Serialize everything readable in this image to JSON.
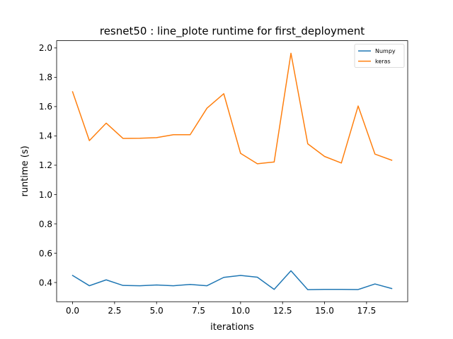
{
  "chart_data": {
    "type": "line",
    "title": "resnet50 : line_plote runtime  for first_deployment",
    "xlabel": "iterations",
    "ylabel": "runtime (s)",
    "xlim": [
      -0.95,
      19.95
    ],
    "ylim": [
      0.269,
      2.0495
    ],
    "x_ticks": [
      0.0,
      2.5,
      5.0,
      7.5,
      10.0,
      12.5,
      15.0,
      17.5
    ],
    "x_tick_labels": [
      "0.0",
      "2.5",
      "5.0",
      "7.5",
      "10.0",
      "12.5",
      "15.0",
      "17.5"
    ],
    "y_ticks": [
      0.4,
      0.6,
      0.8,
      1.0,
      1.2,
      1.4,
      1.6,
      1.8,
      2.0
    ],
    "y_tick_labels": [
      "0.4",
      "0.6",
      "0.8",
      "1.0",
      "1.2",
      "1.4",
      "1.6",
      "1.8",
      "2.0"
    ],
    "grid": false,
    "legend_position": "top-right",
    "x": [
      0,
      1,
      2,
      3,
      4,
      5,
      6,
      7,
      8,
      9,
      10,
      11,
      12,
      13,
      14,
      15,
      16,
      17,
      18,
      19
    ],
    "series": [
      {
        "name": "Numpy",
        "color": "#1f77b4",
        "values": [
          0.448,
          0.378,
          0.418,
          0.38,
          0.378,
          0.383,
          0.378,
          0.387,
          0.378,
          0.435,
          0.448,
          0.436,
          0.353,
          0.48,
          0.351,
          0.353,
          0.353,
          0.352,
          0.39,
          0.359
        ]
      },
      {
        "name": "keras",
        "color": "#ff7f0e",
        "values": [
          1.701,
          1.368,
          1.487,
          1.383,
          1.384,
          1.388,
          1.408,
          1.408,
          1.589,
          1.688,
          1.281,
          1.21,
          1.222,
          1.964,
          1.346,
          1.26,
          1.215,
          1.604,
          1.276,
          1.234
        ]
      }
    ]
  }
}
